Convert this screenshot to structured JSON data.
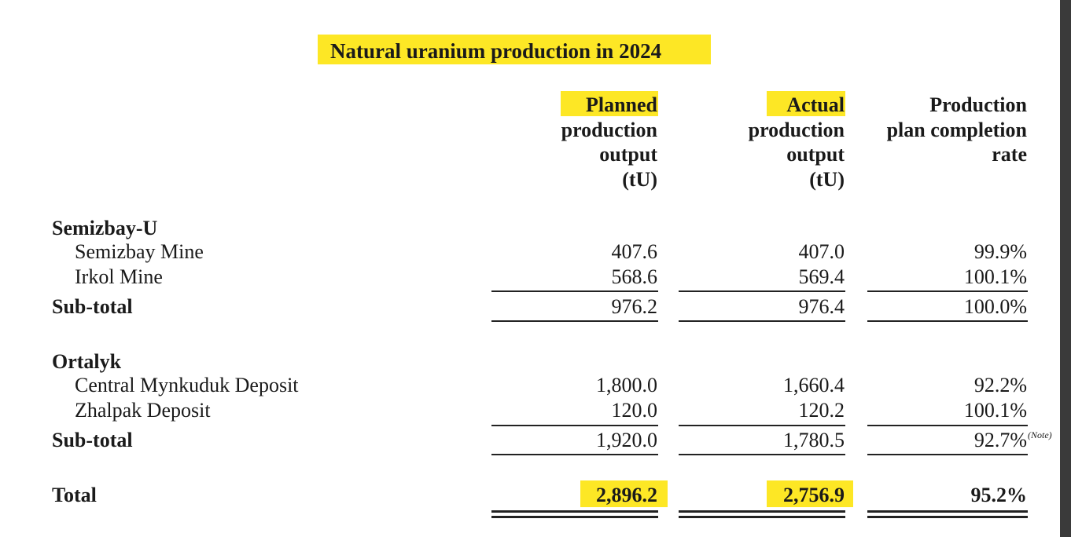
{
  "title": "Natural uranium production in 2024",
  "headers": {
    "planned": [
      "Planned",
      "production",
      "output",
      "(tU)"
    ],
    "actual": [
      "Actual",
      "production",
      "output",
      "(tU)"
    ],
    "rate": [
      "Production",
      "plan completion",
      "rate"
    ]
  },
  "groups": [
    {
      "name": "Semizbay-U",
      "rows": [
        {
          "label": "Semizbay Mine",
          "planned": "407.6",
          "actual": "407.0",
          "rate": "99.9%"
        },
        {
          "label": "Irkol Mine",
          "planned": "568.6",
          "actual": "569.4",
          "rate": "100.1%"
        }
      ],
      "subtotal": {
        "label": "Sub-total",
        "planned": "976.2",
        "actual": "976.4",
        "rate": "100.0%",
        "note": ""
      }
    },
    {
      "name": "Ortalyk",
      "rows": [
        {
          "label": "Central Mynkuduk Deposit",
          "planned": "1,800.0",
          "actual": "1,660.4",
          "rate": "92.2%"
        },
        {
          "label": "Zhalpak Deposit",
          "planned": "120.0",
          "actual": "120.2",
          "rate": "100.1%"
        }
      ],
      "subtotal": {
        "label": "Sub-total",
        "planned": "1,920.0",
        "actual": "1,780.5",
        "rate": "92.7%",
        "note": "(Note)"
      }
    }
  ],
  "total": {
    "label": "Total",
    "planned": "2,896.2",
    "actual": "2,756.9",
    "rate": "95.2%"
  },
  "highlight_color": "#fde725"
}
